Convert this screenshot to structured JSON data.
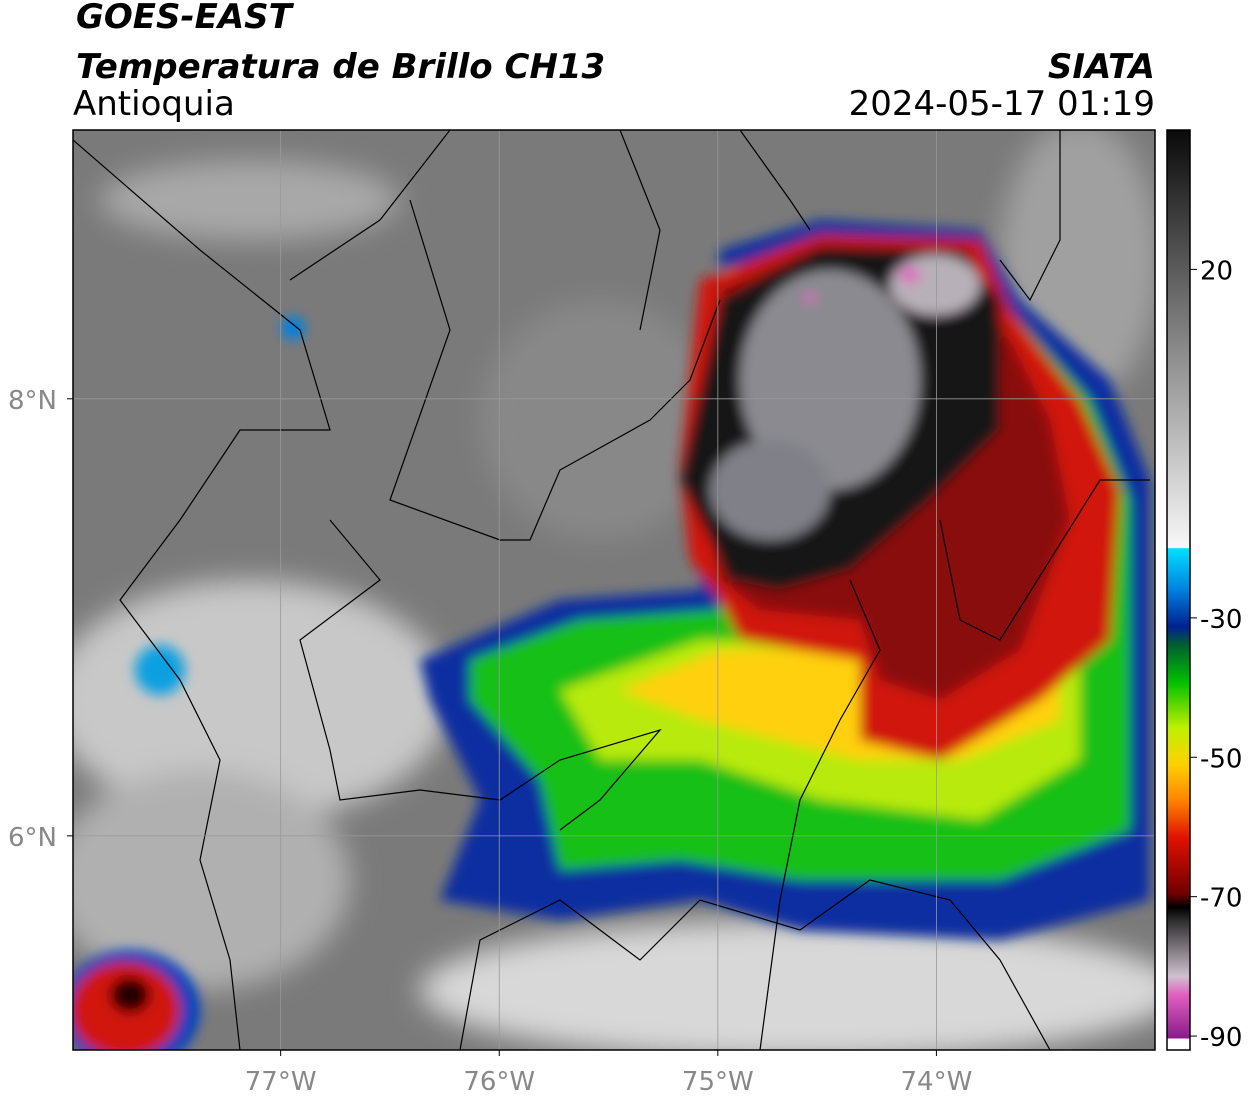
{
  "header": {
    "title": "GOES-EAST",
    "subtitle": "Temperatura de Brillo CH13",
    "region": "Antioquia",
    "source": "SIATA",
    "datetime": "2024-05-17 01:19"
  },
  "map": {
    "xlim": [
      -77.95,
      -73.0
    ],
    "ylim": [
      5.02,
      9.23
    ],
    "xticks": [
      {
        "value": -77,
        "label": "77°W"
      },
      {
        "value": -76,
        "label": "76°W"
      },
      {
        "value": -75,
        "label": "75°W"
      },
      {
        "value": -74,
        "label": "74°W"
      }
    ],
    "yticks": [
      {
        "value": 8,
        "label": "8°N"
      },
      {
        "value": 6,
        "label": "6°N"
      }
    ],
    "grid": true
  },
  "colorbar": {
    "lim": [
      -92,
      40
    ],
    "ticks": [
      20,
      -30,
      -50,
      -70,
      -90
    ]
  }
}
